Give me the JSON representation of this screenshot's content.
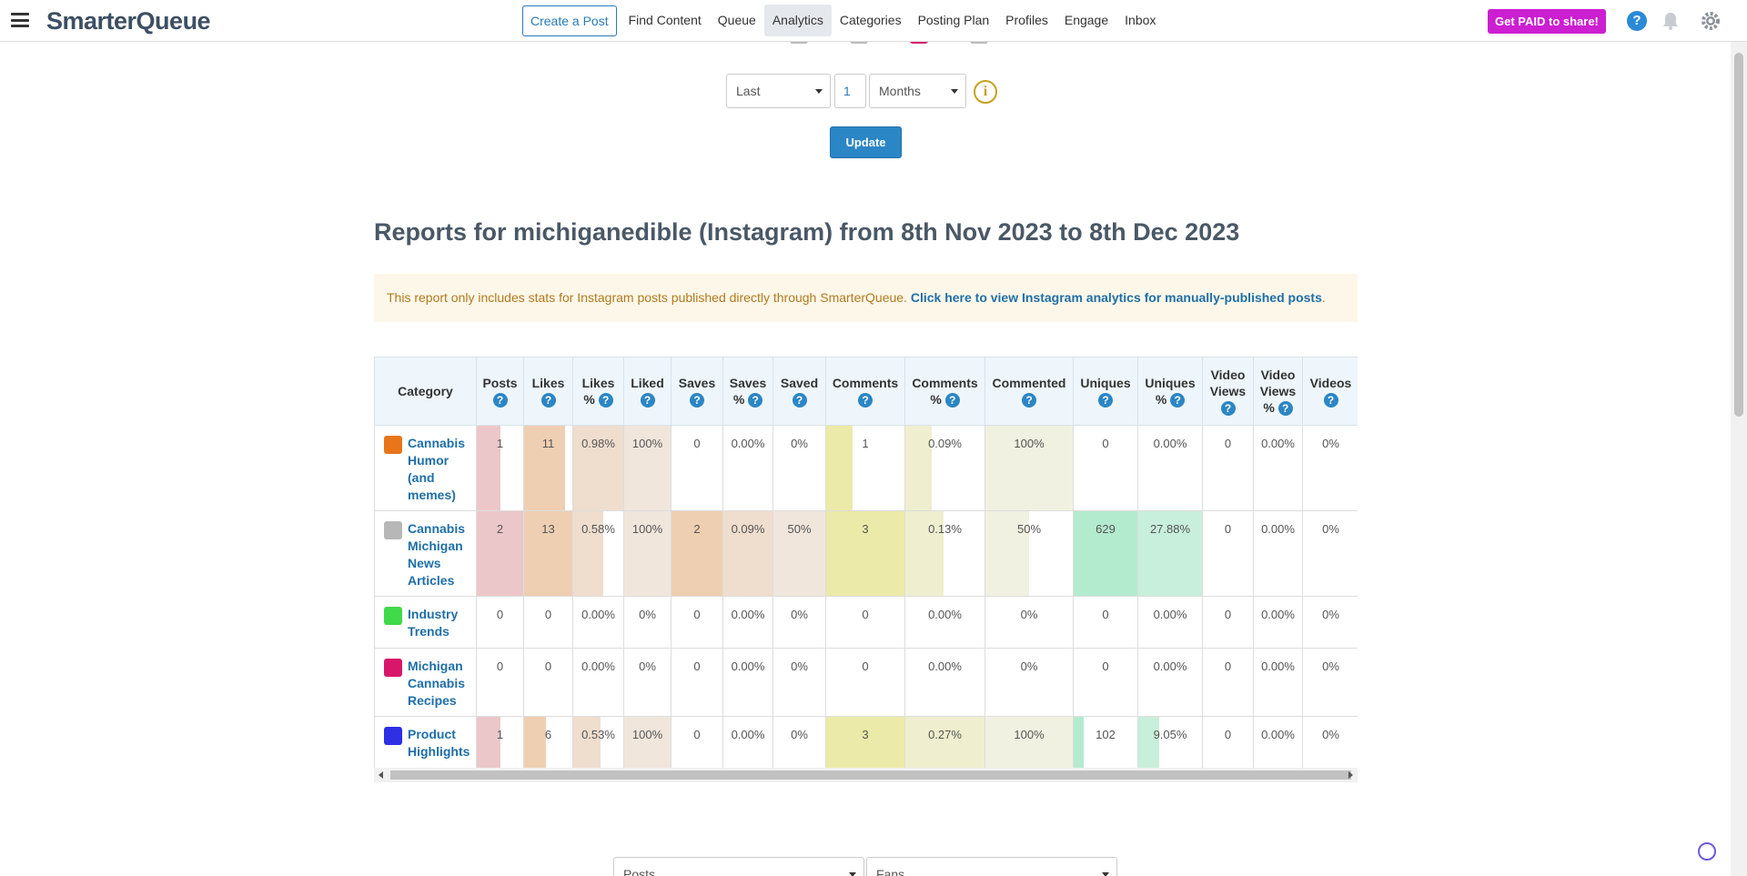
{
  "nav": {
    "logo": "SmarterQueue",
    "create_post": "Create a Post",
    "items": [
      {
        "label": "Find Content"
      },
      {
        "label": "Queue"
      },
      {
        "label": "Analytics"
      },
      {
        "label": "Categories"
      },
      {
        "label": "Posting Plan"
      },
      {
        "label": "Profiles"
      },
      {
        "label": "Engage"
      },
      {
        "label": "Inbox"
      }
    ],
    "paid_button": "Get PAID to share!",
    "help": "?"
  },
  "filters": {
    "range_select": "Last",
    "number": "1",
    "unit_select": "Months",
    "info": "i",
    "update_button": "Update",
    "bottom_select_1": "Posts",
    "bottom_select_2": "Fans"
  },
  "report": {
    "title": "Reports for michiganedible (Instagram) from 8th Nov 2023 to 8th Dec 2023",
    "notice_text": "This report only includes stats for Instagram posts published directly through SmarterQueue.",
    "notice_link": "Click here to view Instagram analytics for manually-published posts",
    "notice_end": "."
  },
  "table": {
    "headers": [
      "Category",
      "Posts",
      "Likes",
      "Likes %",
      "Liked",
      "Saves",
      "Saves %",
      "Saved",
      "Comments",
      "Comments %",
      "Commented",
      "Uniques",
      "Uniques %",
      "Video Views",
      "Video Views %",
      "Videos"
    ],
    "rows": [
      {
        "category": "Cannabis Humor (and memes)",
        "color": "#e8751a",
        "values": [
          "1",
          "11",
          "0.98%",
          "100%",
          "0",
          "0.00%",
          "0%",
          "1",
          "0.09%",
          "100%",
          "0",
          "0.00%",
          "0",
          "0.00%",
          "0%"
        ]
      },
      {
        "category": "Cannabis Michigan News Articles",
        "color": "#b7b7b7",
        "values": [
          "2",
          "13",
          "0.58%",
          "100%",
          "2",
          "0.09%",
          "50%",
          "3",
          "0.13%",
          "50%",
          "629",
          "27.88%",
          "0",
          "0.00%",
          "0%"
        ]
      },
      {
        "category": "Industry Trends",
        "color": "#3fd94a",
        "values": [
          "0",
          "0",
          "0.00%",
          "0%",
          "0",
          "0.00%",
          "0%",
          "0",
          "0.00%",
          "0%",
          "0",
          "0.00%",
          "0",
          "0.00%",
          "0%"
        ]
      },
      {
        "category": "Michigan Cannabis Recipes",
        "color": "#d8176a",
        "values": [
          "0",
          "0",
          "0.00%",
          "0%",
          "0",
          "0.00%",
          "0%",
          "0",
          "0.00%",
          "0%",
          "0",
          "0.00%",
          "0",
          "0.00%",
          "0%"
        ]
      },
      {
        "category": "Product Highlights",
        "color": "#2f2fe6",
        "values": [
          "1",
          "6",
          "0.53%",
          "100%",
          "0",
          "0.00%",
          "0%",
          "3",
          "0.27%",
          "100%",
          "102",
          "9.05%",
          "0",
          "0.00%",
          "0%"
        ]
      }
    ]
  },
  "colors": {
    "accent": "#2b86c5",
    "paid": "#cc1fd1",
    "posts_bar": "#ecc7c9",
    "likes_bar": "#efcfb2",
    "likes_pct_bar": "#efddcd",
    "liked_bar": "#f1e6dc",
    "saves_bar": "#efcfb2",
    "comments_bar": "#eceaa8",
    "comments_pct_bar": "#efefcf",
    "commented_bar": "#f0f1e0",
    "uniques_bar": "#b3ebcf",
    "uniques_pct_bar": "#c8efdb"
  }
}
